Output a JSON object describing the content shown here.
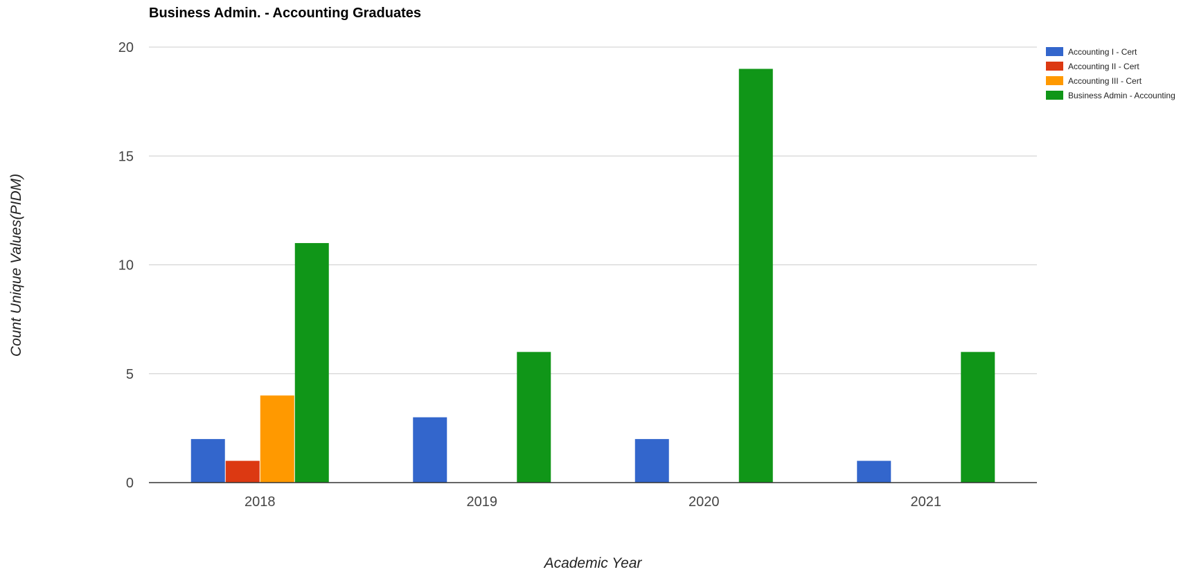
{
  "chart_data": {
    "type": "bar",
    "title": "Business Admin. - Accounting Graduates",
    "xlabel": "Academic Year",
    "ylabel": "Count Unique Values(PIDM)",
    "categories": [
      "2018",
      "2019",
      "2020",
      "2021"
    ],
    "series": [
      {
        "name": "Accounting I - Cert",
        "color": "#3366cc",
        "values": [
          2,
          3,
          2,
          1
        ]
      },
      {
        "name": "Accounting II - Cert",
        "color": "#dc3912",
        "values": [
          1,
          0,
          0,
          0
        ]
      },
      {
        "name": "Accounting III - Cert",
        "color": "#ff9900",
        "values": [
          4,
          0,
          0,
          0
        ]
      },
      {
        "name": "Business Admin - Accounting",
        "color": "#109618",
        "values": [
          11,
          6,
          19,
          6
        ]
      }
    ],
    "ylim": [
      0,
      20
    ],
    "yticks": [
      0,
      5,
      10,
      15,
      20
    ],
    "grid": true,
    "legend_position": "right"
  }
}
